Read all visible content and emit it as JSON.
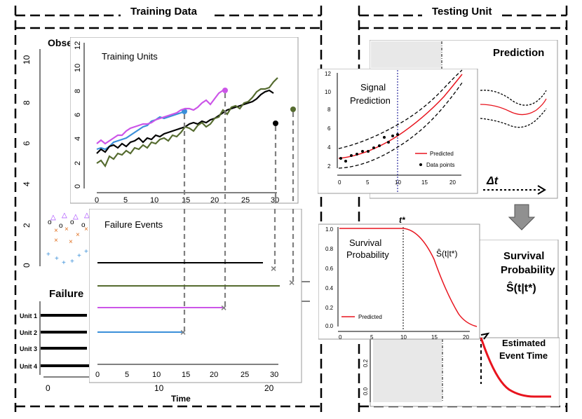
{
  "sections": {
    "training_title": "Training Data",
    "testing_title": "Testing Unit"
  },
  "bg_panel": {
    "title_partial": "Observed Data",
    "failure_title": "Failure",
    "y_ticks": [
      "0",
      "2",
      "4",
      "6",
      "8",
      "10"
    ],
    "x_ticks": [
      "0",
      "10",
      "20"
    ],
    "x_label": "Time",
    "unit_labels": [
      "Unit 1",
      "Unit 2",
      "Unit 3",
      "Unit 4"
    ]
  },
  "training_units_panel": {
    "title": "Training Units",
    "y_ticks": [
      "0",
      "2",
      "4",
      "6",
      "8",
      "10",
      "12"
    ],
    "x_ticks": [
      "0",
      "5",
      "10",
      "15",
      "20",
      "25",
      "30"
    ]
  },
  "failure_events_panel": {
    "title": "Failure Events",
    "x_ticks": [
      "0",
      "5",
      "10",
      "15",
      "20",
      "25",
      "30"
    ]
  },
  "signal_prediction": {
    "title_line1": "Signal",
    "title_line2": "Prediction",
    "legend_predicted": "Predicted",
    "legend_points": "Data points",
    "y_ticks": [
      "2",
      "4",
      "6",
      "8",
      "10",
      "12"
    ],
    "x_ticks": [
      "0",
      "5",
      "10",
      "15",
      "20"
    ]
  },
  "survival_panel": {
    "t_star": "t*",
    "title_line1": "Survival",
    "title_line2": "Probability",
    "formula": "Ŝ(t|t*)",
    "legend_predicted": "Predicted",
    "y_ticks": [
      "0.0",
      "0.2",
      "0.4",
      "0.6",
      "0.8",
      "1.0"
    ],
    "x_ticks": [
      "0",
      "5",
      "10",
      "15",
      "20"
    ]
  },
  "right_labels": {
    "prediction": "Prediction",
    "delta_t": "Δt",
    "survival_line1": "Survival",
    "survival_line2": "Probability",
    "survival_formula": "Ŝ(t|t*)",
    "estimated_line1": "Estimated",
    "estimated_line2": "Event Time",
    "small_tick_02": "0.2",
    "small_tick_00": "0.0"
  },
  "colors": {
    "blue": "#3a8fd9",
    "magenta": "#cc55e8",
    "black": "#000000",
    "olive": "#556b2f",
    "red": "#e8141e",
    "gray": "#808080"
  }
}
